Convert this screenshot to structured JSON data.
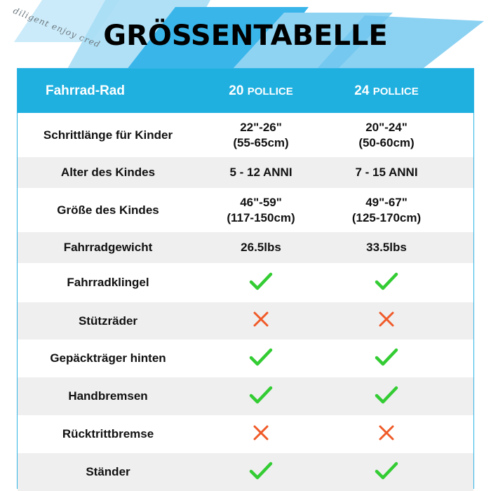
{
  "page": {
    "title": "GRÖSSENTABELLE",
    "watermark": "diligent enjoy cred",
    "colors": {
      "header_bg": "#1fb0e0",
      "alt_row_bg": "#efefef",
      "check": "#33cc33",
      "cross": "#f05a28",
      "stripe": "#6ec6ef"
    }
  },
  "table": {
    "header": {
      "label": "Fahrrad-Rad",
      "col1_num": "20",
      "col1_unit": "POLLICE",
      "col2_num": "24",
      "col2_unit": "POLLICE"
    },
    "rows": [
      {
        "label": "Schrittlänge für Kinder",
        "v1a": "22\"-26\"",
        "v1b": "(55-65cm)",
        "v2a": "20\"-24\"",
        "v2b": "(50-60cm)"
      },
      {
        "label": "Alter des Kindes",
        "v1a": "5 - 12 ANNI",
        "v2a": "7 - 15 ANNI"
      },
      {
        "label": "Größe des Kindes",
        "v1a": "46\"-59\"",
        "v1b": "(117-150cm)",
        "v2a": "49\"-67\"",
        "v2b": "(125-170cm)"
      },
      {
        "label": "Fahrradgewicht",
        "v1a": "26.5lbs",
        "v2a": "33.5lbs"
      },
      {
        "label": "Fahrradklingel",
        "m1": "check-icon",
        "m2": "check-icon"
      },
      {
        "label": "Stützräder",
        "m1": "cross-icon",
        "m2": "cross-icon"
      },
      {
        "label": "Gepäckträger hinten",
        "m1": "check-icon",
        "m2": "check-icon"
      },
      {
        "label": "Handbremsen",
        "m1": "check-icon",
        "m2": "check-icon"
      },
      {
        "label": "Rücktrittbremse",
        "m1": "cross-icon",
        "m2": "cross-icon"
      },
      {
        "label": "Ständer",
        "m1": "check-icon",
        "m2": "check-icon"
      }
    ]
  }
}
